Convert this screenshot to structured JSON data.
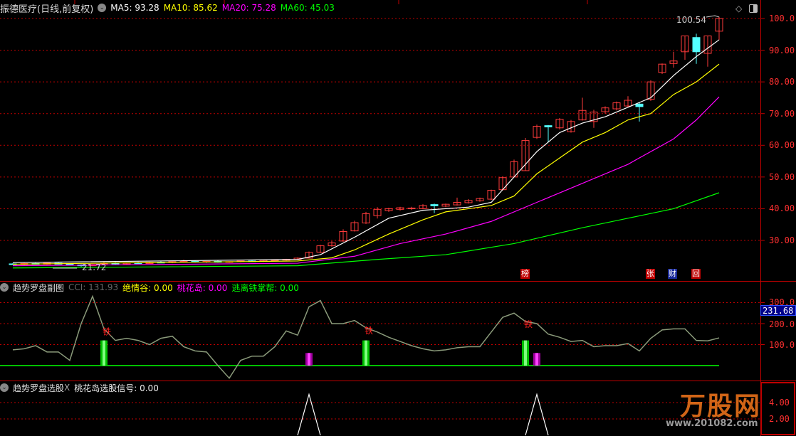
{
  "main_panel": {
    "title": "振德医疗(日线,前复权)",
    "ma5_label": "MA5: 93.28",
    "ma10_label": "MA10: 85.62",
    "ma20_label": "MA20: 75.28",
    "ma60_label": "MA60: 45.03",
    "high_label": "100.54",
    "low_label": "21.72",
    "axis_labels": [
      "100.0",
      "90.00",
      "80.00",
      "70.00",
      "60.00",
      "50.00",
      "40.00",
      "30.00"
    ],
    "badges": [
      {
        "text": "榜",
        "color": "#c00000"
      },
      {
        "text": "张",
        "color": "#c00000"
      },
      {
        "text": "财",
        "color": "#1a2a9a"
      },
      {
        "text": "回",
        "color": "#c00000"
      }
    ]
  },
  "sub_panel_1": {
    "title": "趋势罗盘副图",
    "cci_label": "CCI: 131.93",
    "jqg_label": "绝情谷: 0.00",
    "thd_label": "桃花岛: 0.00",
    "tlt_label": "逃离铁掌帮: 0.00",
    "signal_char": "铁",
    "current_value": "231.68",
    "axis_labels": [
      "300.0",
      "200.0",
      "100.0"
    ]
  },
  "sub_panel_2": {
    "title": "趋势罗盘选股",
    "close_mark": "X",
    "signal_label": "桃花岛选股信号: 0.00",
    "axis_labels": [
      "4.00",
      "2.00"
    ]
  },
  "watermark": {
    "brand": "万股网",
    "url": "www.201082.com"
  },
  "colors": {
    "up": "#ff3b3b",
    "down": "#54ffff",
    "ma5": "#ffffff",
    "ma10": "#ffff00",
    "ma20": "#ff00ff",
    "ma60": "#00ff00",
    "grid": "#c00000",
    "cci": "#8a9a7a"
  },
  "chart_data": [
    {
      "type": "candlestick",
      "ylim": [
        20,
        102
      ],
      "candles": [
        [
          22.6,
          22.8,
          22.3,
          22.5
        ],
        [
          22.4,
          22.9,
          22.2,
          22.7
        ],
        [
          22.7,
          22.9,
          22.4,
          22.5
        ],
        [
          22.5,
          22.9,
          22.3,
          22.8
        ],
        [
          22.8,
          23.0,
          22.4,
          22.5
        ],
        [
          22.5,
          22.7,
          22.1,
          22.3
        ],
        [
          22.3,
          22.5,
          21.72,
          22.0
        ],
        [
          22.0,
          22.5,
          21.9,
          22.4
        ],
        [
          22.6,
          23.4,
          22.5,
          22.8
        ],
        [
          22.8,
          23.1,
          22.4,
          22.6
        ],
        [
          22.6,
          23.0,
          22.4,
          22.9
        ],
        [
          22.9,
          23.2,
          22.6,
          22.7
        ],
        [
          22.7,
          23.3,
          22.6,
          23.1
        ],
        [
          23.1,
          23.4,
          22.8,
          23.0
        ],
        [
          23.0,
          23.4,
          22.8,
          23.3
        ],
        [
          23.3,
          23.9,
          23.1,
          23.4
        ],
        [
          23.4,
          23.6,
          23.0,
          23.2
        ],
        [
          23.2,
          23.5,
          22.9,
          23.4
        ],
        [
          23.4,
          23.6,
          23.0,
          23.1
        ],
        [
          23.1,
          23.4,
          22.9,
          23.3
        ],
        [
          23.3,
          23.6,
          23.1,
          23.5
        ],
        [
          23.5,
          23.7,
          23.2,
          23.4
        ],
        [
          23.4,
          23.8,
          23.2,
          23.7
        ],
        [
          23.7,
          24.0,
          23.5,
          23.8
        ],
        [
          23.8,
          24.2,
          23.6,
          24.0
        ],
        [
          24.0,
          24.6,
          23.8,
          24.4
        ],
        [
          24.4,
          26.5,
          24.3,
          26.2
        ],
        [
          26.3,
          28.6,
          26.0,
          28.3
        ],
        [
          28.3,
          29.8,
          28.0,
          29.2
        ],
        [
          29.8,
          33.5,
          29.6,
          32.8
        ],
        [
          33.0,
          36.2,
          32.8,
          35.6
        ],
        [
          35.5,
          39.0,
          35.2,
          38.4
        ],
        [
          37.8,
          40.5,
          36.9,
          39.8
        ],
        [
          39.4,
          40.3,
          39.0,
          40.0
        ],
        [
          39.8,
          40.6,
          39.4,
          40.3
        ],
        [
          40.1,
          40.6,
          39.6,
          40.2
        ],
        [
          40.0,
          41.4,
          39.8,
          41.0
        ],
        [
          41.3,
          41.6,
          38.6,
          40.9
        ],
        [
          40.8,
          41.6,
          40.5,
          41.4
        ],
        [
          41.2,
          43.5,
          41.0,
          42.0
        ],
        [
          41.9,
          43.0,
          41.6,
          42.6
        ],
        [
          42.5,
          43.5,
          42.2,
          43.2
        ],
        [
          43.0,
          46.0,
          42.8,
          45.8
        ],
        [
          46.0,
          50.2,
          45.8,
          49.8
        ],
        [
          50.0,
          55.5,
          49.9,
          54.8
        ],
        [
          52.0,
          62.3,
          52.0,
          61.5
        ],
        [
          62.5,
          66.5,
          62.0,
          66.0
        ],
        [
          66.2,
          66.4,
          60.9,
          65.8
        ],
        [
          65.5,
          68.6,
          65.0,
          68.2
        ],
        [
          64.3,
          68.0,
          64.0,
          67.5
        ],
        [
          68.0,
          75.0,
          67.8,
          71.0
        ],
        [
          67.5,
          71.2,
          65.5,
          70.5
        ],
        [
          70.6,
          72.3,
          70.0,
          71.8
        ],
        [
          71.5,
          73.8,
          71.0,
          73.4
        ],
        [
          72.4,
          75.5,
          72.0,
          74.2
        ],
        [
          73.0,
          73.5,
          67.5,
          72.2
        ],
        [
          74.5,
          80.5,
          74.0,
          80.0
        ],
        [
          83.0,
          85.8,
          82.5,
          85.6
        ],
        [
          85.8,
          89.5,
          84.5,
          86.6
        ],
        [
          89.5,
          94.5,
          87.0,
          94.5
        ],
        [
          94.0,
          95.2,
          85.7,
          89.5
        ],
        [
          89.0,
          94.5,
          84.8,
          94.5
        ],
        [
          96.0,
          100.54,
          93.2,
          100.0
        ]
      ],
      "ma5": [
        [
          0,
          23
        ],
        [
          25,
          24
        ],
        [
          27,
          25.5
        ],
        [
          30,
          31
        ],
        [
          33,
          37
        ],
        [
          36,
          39.5
        ],
        [
          38,
          40
        ],
        [
          40,
          40.5
        ],
        [
          42,
          42
        ],
        [
          44,
          50
        ],
        [
          46,
          58
        ],
        [
          48,
          64
        ],
        [
          50,
          67
        ],
        [
          52,
          69
        ],
        [
          54,
          72
        ],
        [
          56,
          75
        ],
        [
          58,
          82
        ],
        [
          60,
          88
        ],
        [
          62,
          93.28
        ]
      ],
      "ma10": [
        [
          0,
          22.5
        ],
        [
          25,
          23.5
        ],
        [
          28,
          24.5
        ],
        [
          30,
          27
        ],
        [
          33,
          32
        ],
        [
          36,
          36.5
        ],
        [
          38,
          39
        ],
        [
          40,
          40
        ],
        [
          42,
          41
        ],
        [
          44,
          44
        ],
        [
          46,
          51
        ],
        [
          48,
          56
        ],
        [
          50,
          61
        ],
        [
          52,
          64
        ],
        [
          54,
          68
        ],
        [
          56,
          70
        ],
        [
          58,
          76
        ],
        [
          60,
          80
        ],
        [
          62,
          85.62
        ]
      ],
      "ma20": [
        [
          0,
          22
        ],
        [
          25,
          22.8
        ],
        [
          30,
          25
        ],
        [
          34,
          29
        ],
        [
          38,
          32
        ],
        [
          42,
          36
        ],
        [
          46,
          42
        ],
        [
          50,
          48
        ],
        [
          54,
          54
        ],
        [
          58,
          62
        ],
        [
          60,
          68
        ],
        [
          62,
          75.28
        ]
      ],
      "ma60": [
        [
          0,
          21.3
        ],
        [
          25,
          22
        ],
        [
          32,
          24
        ],
        [
          38,
          25.5
        ],
        [
          44,
          29
        ],
        [
          50,
          34
        ],
        [
          54,
          37
        ],
        [
          58,
          40
        ],
        [
          62,
          45.03
        ]
      ]
    },
    {
      "type": "line",
      "ylim": [
        -70,
        340
      ],
      "cci": [
        75,
        80,
        95,
        65,
        65,
        25,
        200,
        330,
        175,
        120,
        130,
        120,
        100,
        130,
        140,
        90,
        70,
        65,
        0,
        -60,
        25,
        45,
        45,
        90,
        165,
        145,
        280,
        310,
        200,
        200,
        215,
        180,
        160,
        135,
        115,
        95,
        80,
        70,
        75,
        85,
        90,
        90,
        160,
        230,
        250,
        210,
        200,
        150,
        135,
        115,
        120,
        90,
        95,
        95,
        105,
        70,
        130,
        170,
        175,
        175,
        120,
        118,
        131.93
      ],
      "green_bars": [
        [
          8,
          120
        ],
        [
          31,
          120
        ],
        [
          45,
          120
        ]
      ],
      "magenta_bars": [
        [
          26,
          60
        ],
        [
          46,
          60
        ]
      ],
      "signal_marks": [
        8,
        31,
        45
      ]
    },
    {
      "type": "line",
      "ylim": [
        0,
        5.5
      ],
      "signal_peaks": [
        [
          26,
          5
        ],
        [
          46,
          5
        ]
      ]
    }
  ]
}
